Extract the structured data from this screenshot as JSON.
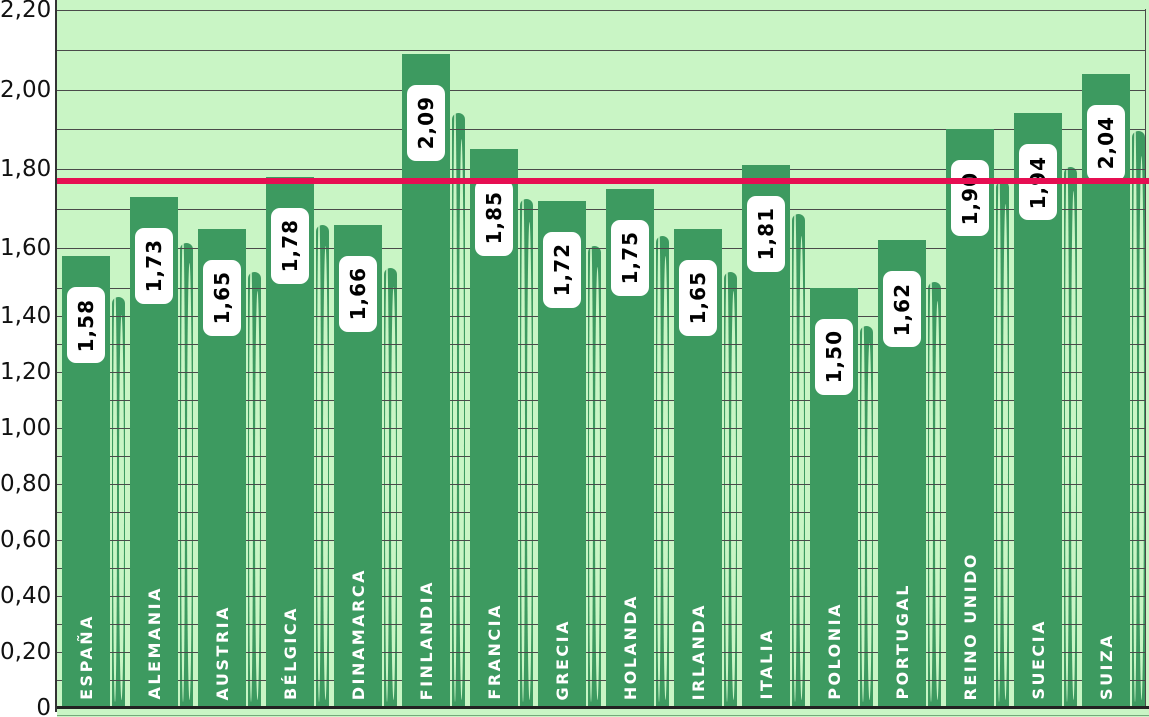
{
  "chart_data": {
    "type": "bar",
    "title": "",
    "xlabel": "",
    "ylabel": "",
    "categories": [
      "ESPAÑA",
      "ALEMANIA",
      "AUSTRIA",
      "BÉLGICA",
      "DINAMARCA",
      "FINLANDIA",
      "FRANCIA",
      "GRECIA",
      "HOLANDA",
      "IRLANDA",
      "ITALIA",
      "POLONIA",
      "PORTUGAL",
      "REINO UNIDO",
      "SUECIA",
      "SUIZA"
    ],
    "values": [
      1.58,
      1.73,
      1.65,
      1.78,
      1.66,
      2.09,
      1.85,
      1.72,
      1.75,
      1.65,
      1.81,
      1.5,
      1.62,
      1.9,
      1.94,
      2.04
    ],
    "value_labels": [
      "1,58",
      "1,73",
      "1,65",
      "1,78",
      "1,66",
      "2,09",
      "1,85",
      "1,72",
      "1,75",
      "1,65",
      "1,81",
      "1,50",
      "1,62",
      "1,90",
      "1,94",
      "2,04"
    ],
    "ylim": [
      0,
      2.2
    ],
    "ytick_labels": [
      "0",
      "0,20",
      "0,40",
      "0,60",
      "0,80",
      "1,00",
      "1,20",
      "1,40",
      "1,60",
      "1,80",
      "2,00",
      "2,20"
    ],
    "ytick_label_step": 0.2,
    "gridline_step": 0.1,
    "grid": true,
    "legend": false,
    "decimal_separator": ",",
    "reference_line": {
      "value": 1.77,
      "color": "#e60e52"
    },
    "colors": {
      "bar": "#3d9a60",
      "plot_background": "#c9f5c5",
      "gridline": "#4a4a4a",
      "axis": "#222222",
      "value_badge_background": "#ffffff",
      "value_badge_text": "#000000",
      "country_label_text": "#ffffff",
      "y_tick_text": "#111111",
      "reference_line": "#e60e52",
      "bottom_strip_line": "#74a97b"
    }
  }
}
